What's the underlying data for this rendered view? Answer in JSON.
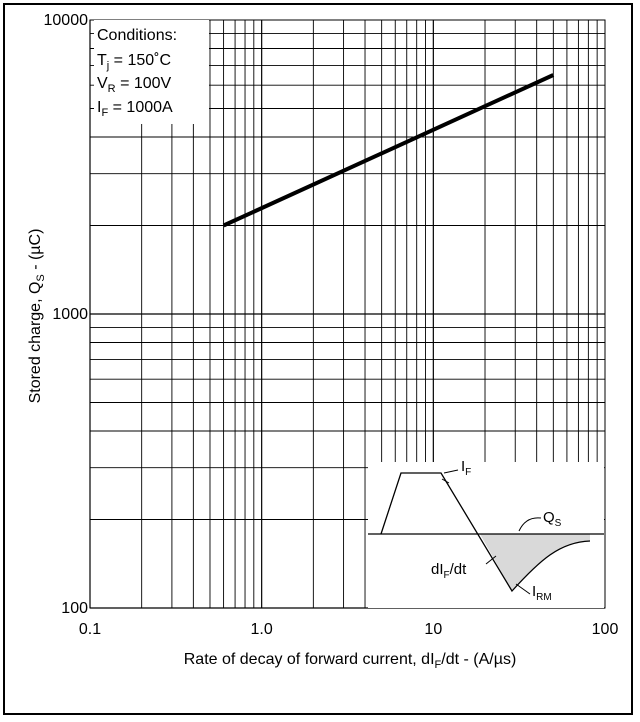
{
  "chart_data": {
    "type": "line",
    "x_scale": "log",
    "y_scale": "log",
    "xlim": [
      0.1,
      100
    ],
    "ylim": [
      100,
      10000
    ],
    "grid": true,
    "x_ticks": [
      {
        "value": 0.1,
        "label": "0.1"
      },
      {
        "value": 1,
        "label": "1.0"
      },
      {
        "value": 10,
        "label": "10"
      },
      {
        "value": 100,
        "label": "100"
      }
    ],
    "y_ticks": [
      {
        "value": 100,
        "label": "100"
      },
      {
        "value": 1000,
        "label": "1000"
      },
      {
        "value": 10000,
        "label": "10000"
      }
    ],
    "xlabel": {
      "main": "Rate of decay of forward current, dI",
      "sub": "F",
      "tail": "/dt - (A/µs)"
    },
    "ylabel": {
      "main": "Stored charge, Q",
      "sub": "S",
      "tail": " - (µC)"
    },
    "series": [
      {
        "x": [
          0.6,
          50
        ],
        "y": [
          2000,
          6500
        ]
      }
    ],
    "conditions": {
      "title": "Conditions:",
      "tj": {
        "sym": "T",
        "sub": "j",
        "val": " = 150˚C"
      },
      "vr": {
        "sym": "V",
        "sub": "R",
        "val": " = 100V"
      },
      "if": {
        "sym": "I",
        "sub": "F",
        "val": " = 1000A"
      }
    },
    "inset": {
      "if_label": {
        "sym": "I",
        "sub": "F"
      },
      "qs_label": {
        "sym": "Q",
        "sub": "S"
      },
      "didt_label": {
        "sym": "dI",
        "sub": "F",
        "tail": "/dt"
      },
      "irm_label": {
        "sym": "I",
        "sub": "RM"
      }
    }
  },
  "colors": {
    "line": "#000000",
    "grid": "#000000",
    "fill": "#d9d9d9",
    "frame": "#000000"
  }
}
